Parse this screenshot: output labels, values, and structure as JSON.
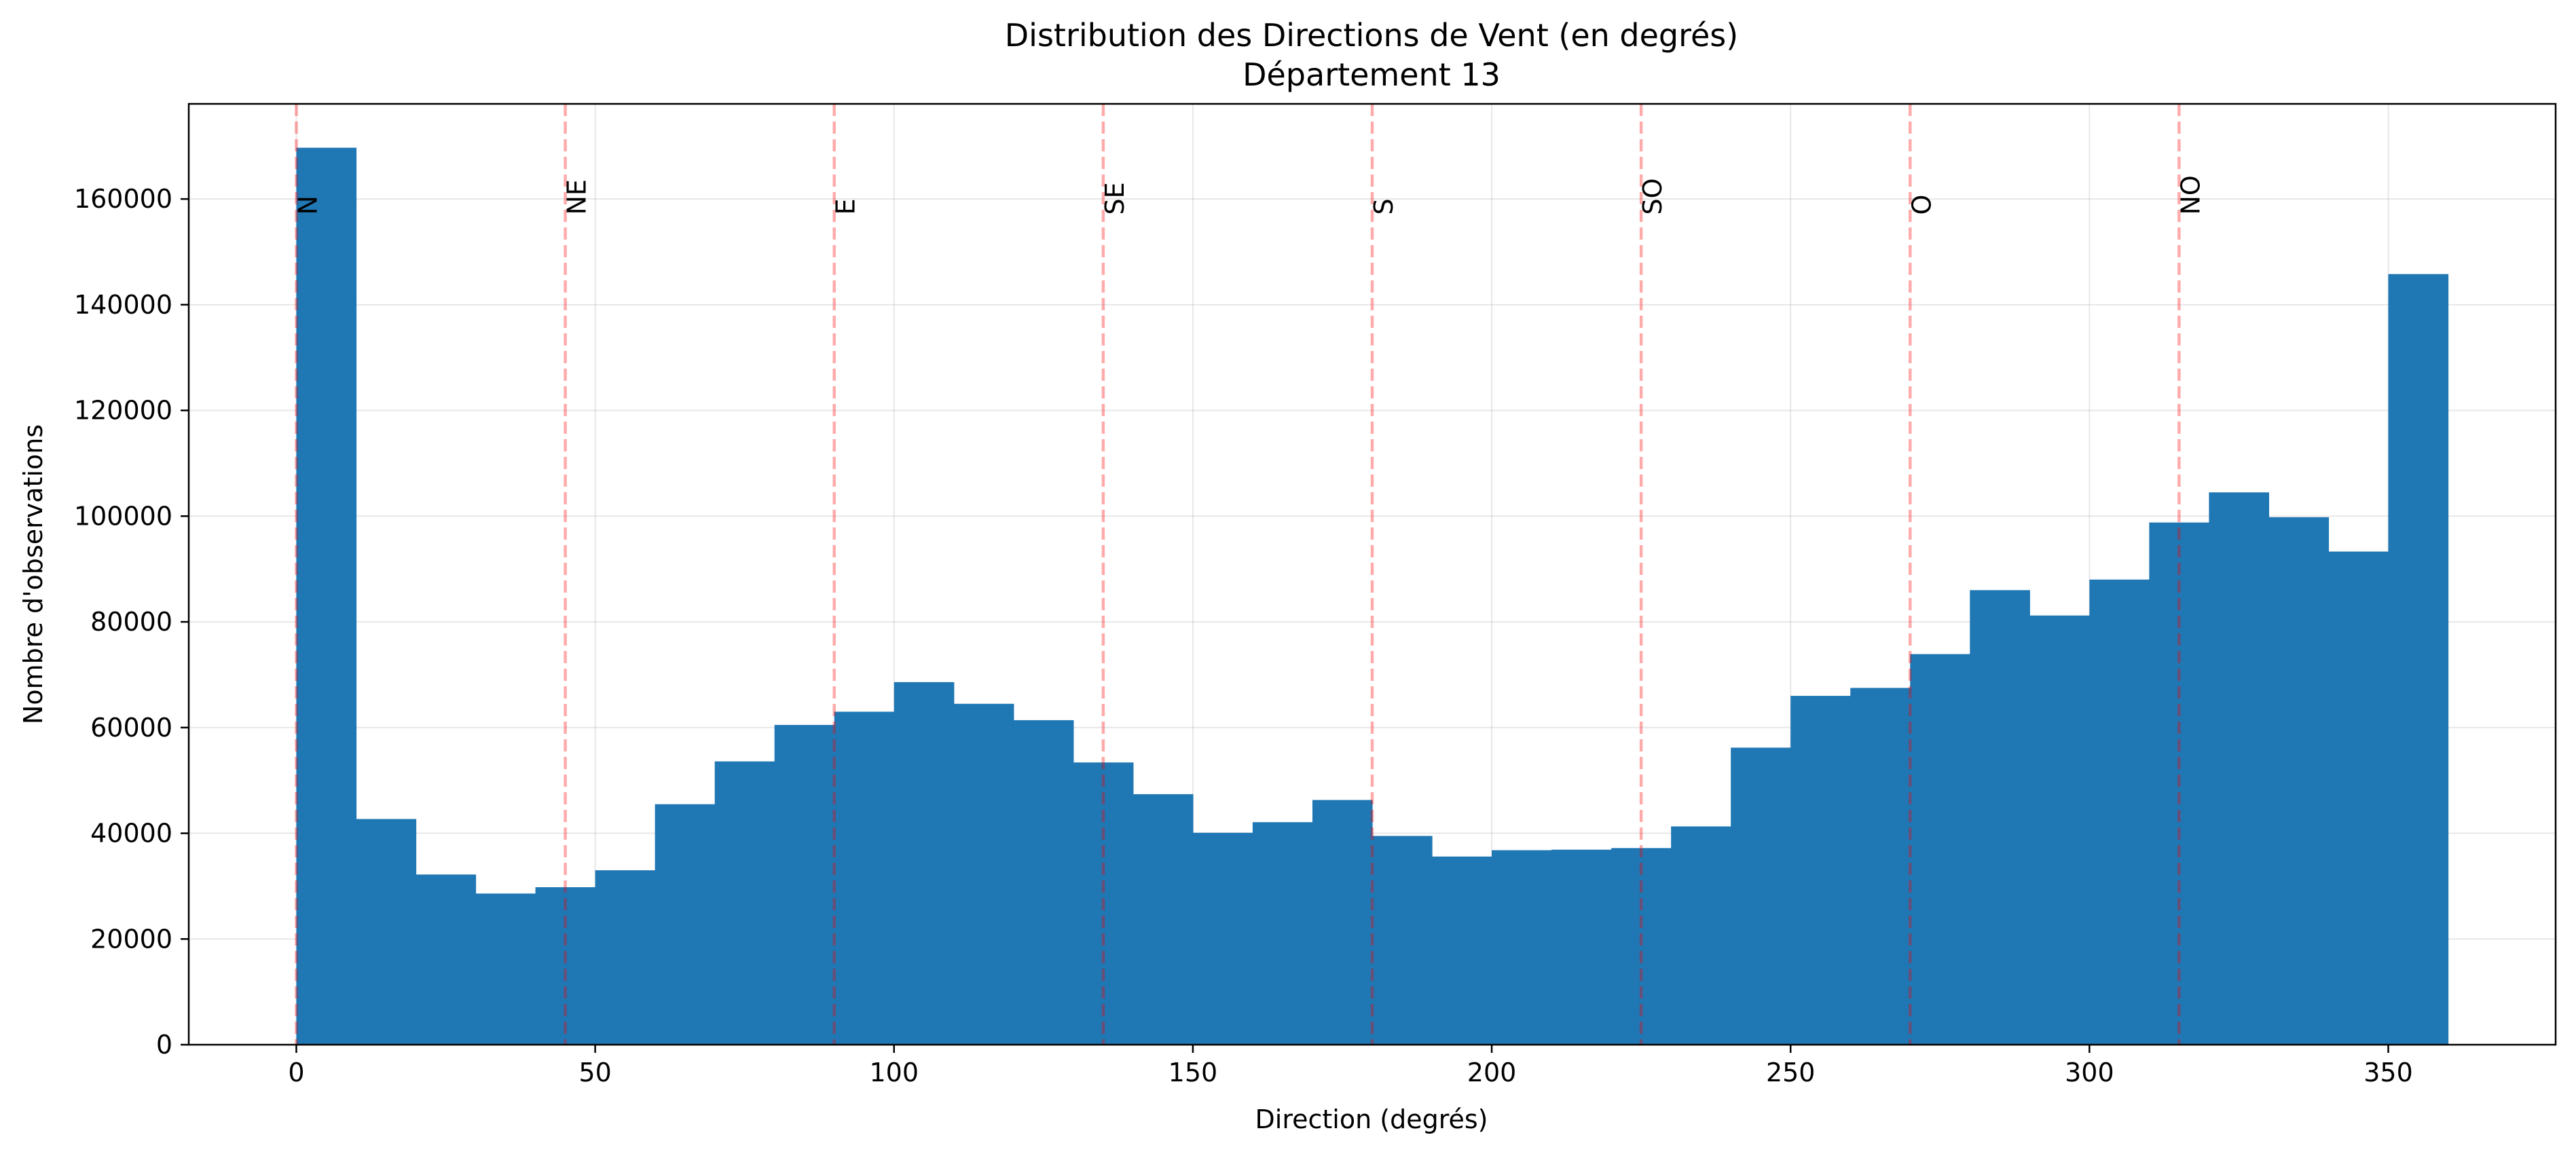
{
  "chart_data": {
    "type": "bar",
    "title": "Distribution des Directions de Vent (en degrés)",
    "subtitle": "Département 13",
    "xlabel": "Direction (degrés)",
    "ylabel": "Nombre d'observations",
    "xlim": [
      -18,
      378
    ],
    "ylim": [
      0,
      178000
    ],
    "xticks": [
      0,
      50,
      100,
      150,
      200,
      250,
      300,
      350
    ],
    "yticks": [
      0,
      20000,
      40000,
      60000,
      80000,
      100000,
      120000,
      140000,
      160000
    ],
    "grid": true,
    "bin_width": 10,
    "bin_edges": [
      0,
      10,
      20,
      30,
      40,
      50,
      60,
      70,
      80,
      90,
      100,
      110,
      120,
      130,
      140,
      150,
      160,
      170,
      180,
      190,
      200,
      210,
      220,
      230,
      240,
      250,
      260,
      270,
      280,
      290,
      300,
      310,
      320,
      330,
      340,
      350,
      360
    ],
    "values": [
      169700,
      42700,
      32200,
      28600,
      29800,
      33000,
      45500,
      53600,
      60500,
      63000,
      68600,
      64500,
      61400,
      53400,
      47400,
      40100,
      42100,
      46300,
      39500,
      35600,
      36800,
      36900,
      37200,
      41300,
      56200,
      66000,
      67500,
      73900,
      86000,
      81200,
      88000,
      98800,
      104500,
      99800,
      93300,
      145800
    ],
    "bar_color": "#1f77b4",
    "reference_lines": [
      {
        "x": 0,
        "label": "N"
      },
      {
        "x": 45,
        "label": "NE"
      },
      {
        "x": 90,
        "label": "E"
      },
      {
        "x": 135,
        "label": "SE"
      },
      {
        "x": 180,
        "label": "S"
      },
      {
        "x": 225,
        "label": "SO"
      },
      {
        "x": 270,
        "label": "O"
      },
      {
        "x": 315,
        "label": "NO"
      }
    ],
    "reference_line_color": "#ff9999",
    "reference_label_y": 157000
  }
}
